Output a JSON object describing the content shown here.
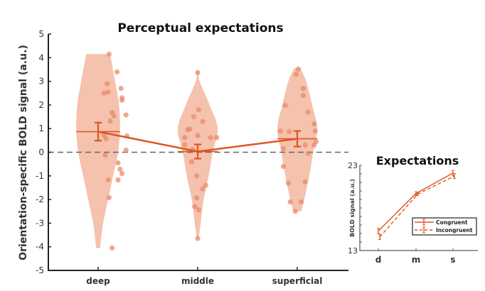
{
  "colors": {
    "accent": "#e0541f",
    "violin": "#f4c2ad",
    "point": "#e98a68",
    "axis": "#222222",
    "zero_line": "#666666"
  },
  "chart_data": [
    {
      "type": "violin",
      "title": "Perceptual expectations",
      "xlabel": "",
      "ylabel": "Orientation-specific BOLD signal (a.u.)",
      "ylim": [
        -5,
        5
      ],
      "yticks": [
        "-5",
        "-4",
        "-3",
        "-2",
        "-1",
        "0",
        "1",
        "2",
        "3",
        "4",
        "5"
      ],
      "ytick_values": [
        -5,
        -4,
        -3,
        -2,
        -1,
        0,
        1,
        2,
        3,
        4,
        5
      ],
      "categories": [
        "deep",
        "middle",
        "superficial"
      ],
      "reference_line": 0,
      "means": [
        0.87,
        0.03,
        0.57
      ],
      "sem": [
        0.38,
        0.3,
        0.33
      ],
      "violins": [
        {
          "category": "deep",
          "profile_y": [
            -4.05,
            -3.0,
            -2.0,
            -1.0,
            0,
            1.0,
            2.0,
            3.0,
            4.15
          ],
          "profile_halfwidth": [
            0.02,
            0.05,
            0.1,
            0.15,
            0.2,
            0.22,
            0.21,
            0.17,
            0.12
          ],
          "points": [
            {
              "dx": 0.11,
              "y": 4.15
            },
            {
              "dx": 0.19,
              "y": 3.4
            },
            {
              "dx": 0.09,
              "y": 2.9
            },
            {
              "dx": 0.06,
              "y": 2.5
            },
            {
              "dx": 0.1,
              "y": 2.55
            },
            {
              "dx": 0.23,
              "y": 2.7
            },
            {
              "dx": 0.24,
              "y": 2.3
            },
            {
              "dx": 0.24,
              "y": 2.2
            },
            {
              "dx": 0.14,
              "y": 1.68
            },
            {
              "dx": 0.16,
              "y": 1.53
            },
            {
              "dx": 0.28,
              "y": 1.58
            },
            {
              "dx": 0.12,
              "y": 1.32
            },
            {
              "dx": 0.06,
              "y": 0.72
            },
            {
              "dx": 0.08,
              "y": 0.57
            },
            {
              "dx": 0.29,
              "y": 0.69
            },
            {
              "dx": 0.07,
              "y": -0.12
            },
            {
              "dx": 0.2,
              "y": -0.45
            },
            {
              "dx": 0.24,
              "y": -0.9
            },
            {
              "dx": 0.1,
              "y": -1.17
            },
            {
              "dx": 0.2,
              "y": -1.17
            },
            {
              "dx": 0.11,
              "y": -1.92
            },
            {
              "dx": 0.14,
              "y": -4.05
            },
            {
              "dx": 0.22,
              "y": -0.72
            },
            {
              "dx": 0.28,
              "y": 0.09
            }
          ]
        },
        {
          "category": "middle",
          "profile_y": [
            -3.65,
            -3.0,
            -2.0,
            -1.0,
            0,
            1.0,
            2.0,
            3.0,
            3.4
          ],
          "profile_halfwidth": [
            0.01,
            0.03,
            0.06,
            0.11,
            0.15,
            0.2,
            0.12,
            0.02,
            0.01
          ],
          "points": [
            {
              "dx": 0.0,
              "y": 3.37
            },
            {
              "dx": 0.01,
              "y": 1.8
            },
            {
              "dx": -0.04,
              "y": 1.5
            },
            {
              "dx": 0.05,
              "y": 1.3
            },
            {
              "dx": -0.1,
              "y": 0.95
            },
            {
              "dx": -0.08,
              "y": 0.98
            },
            {
              "dx": -0.13,
              "y": 0.62
            },
            {
              "dx": 0.0,
              "y": 0.7
            },
            {
              "dx": 0.13,
              "y": 0.62
            },
            {
              "dx": 0.19,
              "y": 0.62
            },
            {
              "dx": -0.13,
              "y": 0.32
            },
            {
              "dx": -0.05,
              "y": 0.12
            },
            {
              "dx": -0.06,
              "y": -0.4
            },
            {
              "dx": -0.01,
              "y": -1.0
            },
            {
              "dx": 0.08,
              "y": -1.4
            },
            {
              "dx": -0.01,
              "y": -1.93
            },
            {
              "dx": -0.03,
              "y": -2.3
            },
            {
              "dx": 0.01,
              "y": -2.43
            },
            {
              "dx": 0.0,
              "y": -3.65
            },
            {
              "dx": 0.05,
              "y": -1.55
            }
          ]
        },
        {
          "category": "superficial",
          "profile_y": [
            -2.5,
            -2.0,
            -1.0,
            0,
            1.0,
            2.0,
            3.0,
            3.55
          ],
          "profile_halfwidth": [
            0.04,
            0.07,
            0.12,
            0.16,
            0.2,
            0.15,
            0.09,
            0.03
          ],
          "points": [
            {
              "dx": 0.01,
              "y": 3.52
            },
            {
              "dx": -0.01,
              "y": 3.3
            },
            {
              "dx": 0.06,
              "y": 2.7
            },
            {
              "dx": 0.06,
              "y": 2.4
            },
            {
              "dx": -0.12,
              "y": 1.98
            },
            {
              "dx": 0.11,
              "y": 1.7
            },
            {
              "dx": 0.17,
              "y": 1.2
            },
            {
              "dx": -0.17,
              "y": 0.9
            },
            {
              "dx": -0.08,
              "y": 0.87
            },
            {
              "dx": 0.18,
              "y": 0.9
            },
            {
              "dx": 0.19,
              "y": 0.45
            },
            {
              "dx": 0.08,
              "y": 0.3
            },
            {
              "dx": 0.17,
              "y": 0.3
            },
            {
              "dx": -0.14,
              "y": 0.15
            },
            {
              "dx": 0.11,
              "y": -0.05
            },
            {
              "dx": -0.14,
              "y": -0.6
            },
            {
              "dx": -0.09,
              "y": -1.3
            },
            {
              "dx": 0.08,
              "y": -1.25
            },
            {
              "dx": -0.07,
              "y": -2.1
            },
            {
              "dx": 0.04,
              "y": -2.1
            },
            {
              "dx": -0.02,
              "y": -2.5
            }
          ]
        }
      ]
    },
    {
      "type": "line",
      "title": "Expectations",
      "xlabel": "",
      "ylabel": "BOLD signal (a.u.)",
      "ylim": [
        13,
        23
      ],
      "yticks": [
        "13",
        "23"
      ],
      "ytick_values": [
        13,
        23
      ],
      "minor_ytick_count": 9,
      "categories": [
        "d",
        "m",
        "s"
      ],
      "series": [
        {
          "name": "Congruent",
          "values": [
            15.3,
            19.7,
            22.1
          ],
          "err": [
            0.3,
            0.2,
            0.3
          ],
          "style": "solid"
        },
        {
          "name": "Incongruent",
          "values": [
            14.6,
            19.6,
            21.75
          ],
          "err": [
            0.3,
            0.15,
            0.3
          ],
          "style": "dashed"
        }
      ],
      "legend_position": "lower-right"
    }
  ]
}
